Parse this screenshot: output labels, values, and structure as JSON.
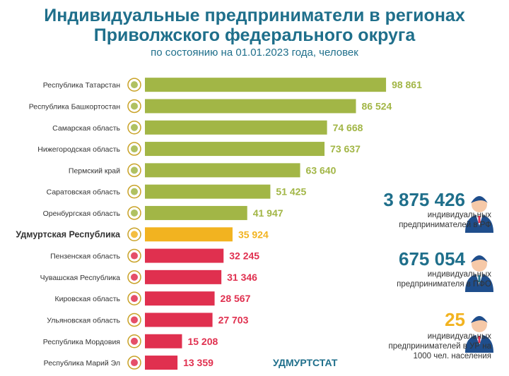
{
  "header": {
    "title_line1": "Индивидуальные предприниматели в регионах",
    "title_line2": "Приволжского федерального округа",
    "subtitle": "по состоянию на 01.01.2023 года, человек"
  },
  "chart_data": {
    "type": "bar",
    "orientation": "horizontal",
    "categories": [
      "Республика Татарстан",
      "Республика Башкортостан",
      "Самарская область",
      "Нижегородская область",
      "Пермский край",
      "Саратовская область",
      "Оренбургская область",
      "Удмуртская Республика",
      "Пензенская область",
      "Чувашская Республика",
      "Кировская область",
      "Ульяновская область",
      "Республика Мордовия",
      "Республика Марий Эл"
    ],
    "values": [
      98861,
      86524,
      74668,
      73637,
      63640,
      51425,
      41947,
      35924,
      32245,
      31346,
      28567,
      27703,
      15208,
      13359
    ],
    "value_labels": [
      "98 861",
      "86 524",
      "74 668",
      "73 637",
      "63 640",
      "51 425",
      "41 947",
      "35 924",
      "32 245",
      "31 346",
      "28 567",
      "27 703",
      "15 208",
      "13 359"
    ],
    "bar_colors": [
      "#a2b646",
      "#a2b646",
      "#a2b646",
      "#a2b646",
      "#a2b646",
      "#a2b646",
      "#a2b646",
      "#f2b320",
      "#e0304f",
      "#e0304f",
      "#e0304f",
      "#e0304f",
      "#e0304f",
      "#e0304f"
    ],
    "highlight": "Удмуртская Республика",
    "xlim": [
      0,
      100000
    ],
    "grid": false
  },
  "stats": [
    {
      "number": "3 875 426",
      "line1": "индивидуальных",
      "line2": "предпринимателей в РФ",
      "line3": "",
      "color": "#1f6f8b"
    },
    {
      "number": "675 054",
      "line1": "индивидуальных",
      "line2": "предпринимателя в ПФО",
      "line3": "",
      "color": "#1f6f8b"
    },
    {
      "number": "25",
      "line1": "индивидуальных",
      "line2": "предпринимателей в УР на",
      "line3": "1000 чел. населения",
      "color": "#f2b320"
    }
  ],
  "source": "УДМУРТСТАТ"
}
